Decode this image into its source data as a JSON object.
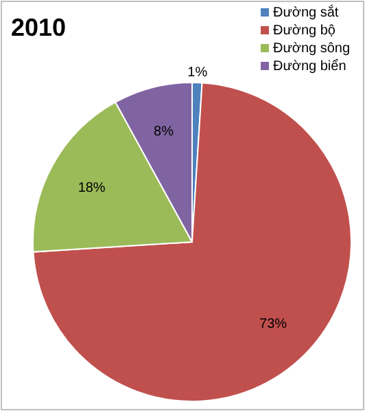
{
  "chart_data": {
    "type": "pie",
    "title": "2010",
    "categories": [
      "Đường sắt",
      "Đường bộ",
      "Đường sông",
      "Đường biển"
    ],
    "values": [
      1,
      73,
      18,
      8
    ],
    "colors": [
      "#4f81bd",
      "#c0504d",
      "#9bbb59",
      "#8064a2"
    ],
    "value_labels": [
      "1%",
      "73%",
      "18%",
      "8%"
    ],
    "legend": "top right"
  }
}
